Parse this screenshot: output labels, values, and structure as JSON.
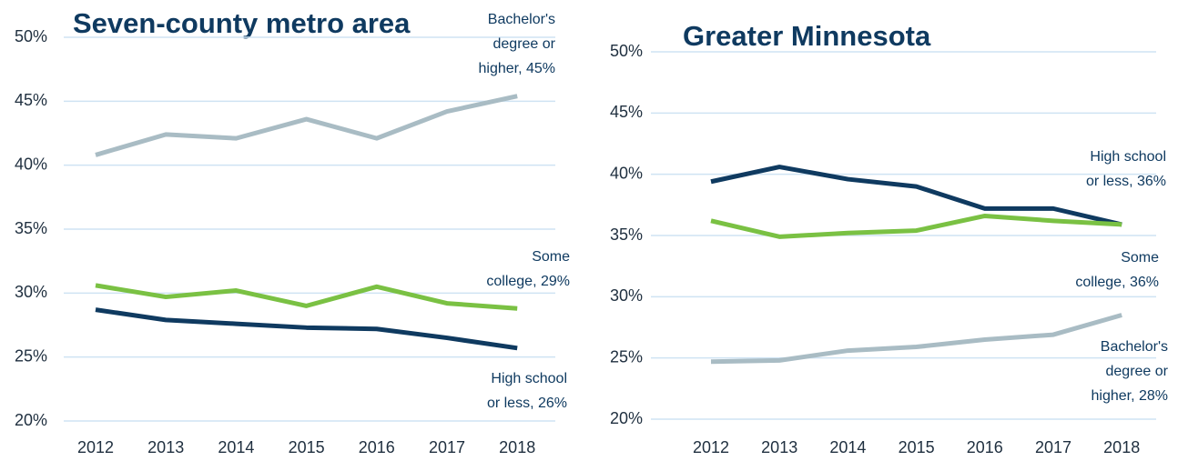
{
  "chart_data": [
    {
      "type": "line",
      "title": "Seven-county metro area",
      "categories": [
        "2012",
        "2013",
        "2014",
        "2015",
        "2016",
        "2017",
        "2018"
      ],
      "ylim": [
        20,
        50
      ],
      "yticks": [
        {
          "value": 20,
          "label": "20%"
        },
        {
          "value": 25,
          "label": "25%"
        },
        {
          "value": 30,
          "label": "30%"
        },
        {
          "value": 35,
          "label": "35%"
        },
        {
          "value": 40,
          "label": "40%"
        },
        {
          "value": 45,
          "label": "45%"
        },
        {
          "value": 50,
          "label": "50%"
        }
      ],
      "grid": true,
      "series": [
        {
          "color": "#a9bcc4",
          "values": [
            40.8,
            42.4,
            42.1,
            43.6,
            42.1,
            44.2,
            45.4
          ],
          "label": [
            "Bachelor's",
            "degree or",
            "higher, 45%"
          ]
        },
        {
          "color": "#7ac143",
          "values": [
            30.6,
            29.7,
            30.2,
            29.0,
            30.5,
            29.2,
            28.8
          ],
          "label": [
            "Some",
            "college, 29%"
          ]
        },
        {
          "color": "#0f3a60",
          "values": [
            28.7,
            27.9,
            27.6,
            27.3,
            27.2,
            26.5,
            25.7
          ],
          "label": [
            "High school",
            "or less, 26%"
          ]
        }
      ]
    },
    {
      "type": "line",
      "title": "Greater Minnesota",
      "categories": [
        "2012",
        "2013",
        "2014",
        "2015",
        "2016",
        "2017",
        "2018"
      ],
      "ylim": [
        20,
        50
      ],
      "yticks": [
        {
          "value": 20,
          "label": "20%"
        },
        {
          "value": 25,
          "label": "25%"
        },
        {
          "value": 30,
          "label": "30%"
        },
        {
          "value": 35,
          "label": "35%"
        },
        {
          "value": 40,
          "label": "40%"
        },
        {
          "value": 45,
          "label": "45%"
        },
        {
          "value": 50,
          "label": "50%"
        }
      ],
      "grid": true,
      "series": [
        {
          "color": "#0f3a60",
          "values": [
            39.4,
            40.6,
            39.6,
            39.0,
            37.2,
            37.2,
            35.9
          ],
          "label": [
            "High school",
            "or less, 36%"
          ]
        },
        {
          "color": "#7ac143",
          "values": [
            36.2,
            34.9,
            35.2,
            35.4,
            36.6,
            36.2,
            35.9
          ],
          "label": [
            "Some",
            "college, 36%"
          ]
        },
        {
          "color": "#a9bcc4",
          "values": [
            24.7,
            24.8,
            25.6,
            25.9,
            26.5,
            26.9,
            28.5
          ],
          "label": [
            "Bachelor's",
            "degree or",
            "higher, 28%"
          ]
        }
      ]
    }
  ]
}
